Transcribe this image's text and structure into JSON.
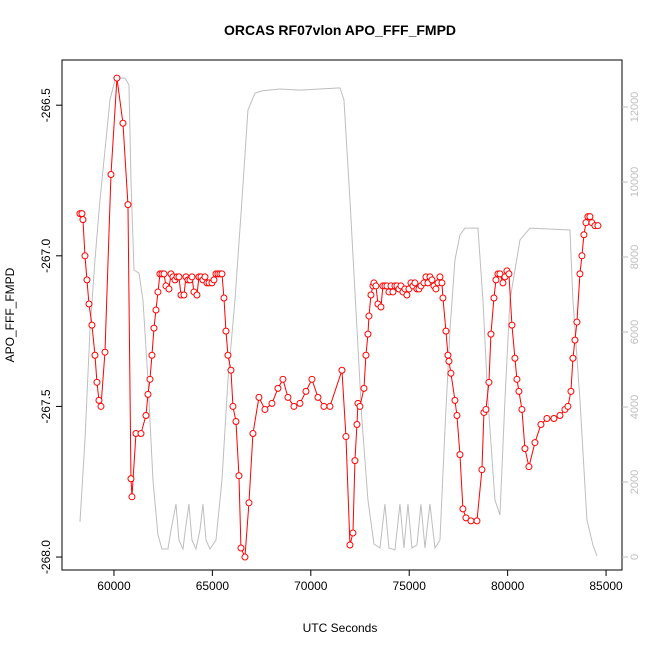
{
  "chart_data": {
    "type": "line",
    "title": "ORCAS RF07vlon APO_FFF_FMPD",
    "xlabel": "UTC Seconds",
    "ylabel": "APO_FFF_FMPD",
    "xlim": [
      57360,
      85810
    ],
    "xticks": [
      60000,
      65000,
      70000,
      75000,
      80000,
      85000
    ],
    "ylim": [
      -268.043,
      -266.35
    ],
    "yticks": [
      -266.5,
      {
        "value": -267.0,
        "label": "-267.0"
      },
      -267.5,
      {
        "value": -268.0,
        "label": "-268.0"
      }
    ],
    "y2lim": [
      -347,
      13253
    ],
    "y2ticks": [
      0,
      2000,
      4000,
      6000,
      8000,
      10000,
      12000
    ],
    "series": [
      {
        "color": "#bebebe",
        "axis": "y2",
        "markers": false,
        "x": [
          58273,
          58527,
          58781,
          59035,
          59289,
          59543,
          59797,
          60051,
          60305,
          60559,
          60762,
          60864,
          61016,
          61270,
          61473,
          61727,
          61981,
          62235,
          62438,
          62743,
          62896,
          63150,
          63302,
          63505,
          63658,
          63810,
          63962,
          64166,
          64369,
          64521,
          64674,
          64877,
          65182,
          65486,
          65791,
          66147,
          66502,
          66807,
          67163,
          67518,
          68433,
          69449,
          70465,
          71481,
          71684,
          71989,
          72294,
          72598,
          72903,
          73208,
          73513,
          73767,
          73970,
          74275,
          74529,
          74732,
          74935,
          75138,
          75392,
          75596,
          75799,
          76053,
          76307,
          76561,
          76815,
          77069,
          77323,
          77577,
          77831,
          78491,
          78745,
          78999,
          79355,
          79609,
          79863,
          80117,
          80625,
          81133,
          83165,
          83317,
          83673,
          84028,
          84333,
          84536
        ],
        "values": [
          933,
          3120,
          6050,
          7920,
          9520,
          10850,
          12190,
          12720,
          12770,
          12770,
          12590,
          10050,
          7650,
          7570,
          6850,
          4720,
          2050,
          590,
          213,
          213,
          720,
          1410,
          450,
          213,
          850,
          1410,
          450,
          213,
          720,
          1410,
          450,
          213,
          450,
          2050,
          4720,
          6850,
          9520,
          11920,
          12370,
          12430,
          12480,
          12450,
          12480,
          12510,
          12190,
          9520,
          6590,
          3650,
          1520,
          347,
          240,
          1410,
          240,
          190,
          1410,
          240,
          1410,
          240,
          320,
          1410,
          240,
          1410,
          240,
          450,
          3390,
          6050,
          7920,
          8590,
          8770,
          8770,
          6850,
          4190,
          1520,
          1120,
          4190,
          6850,
          8450,
          8770,
          8720,
          6850,
          4190,
          990,
          320,
          27
        ]
      },
      {
        "color": "#ff0000",
        "markers": true,
        "x": [
          58273,
          58374,
          58425,
          58527,
          58628,
          58730,
          58882,
          59035,
          59136,
          59238,
          59340,
          59543,
          59848,
          60152,
          60457,
          60711,
          60864,
          60914,
          61118,
          61372,
          61626,
          61727,
          61829,
          61930,
          62032,
          62134,
          62235,
          62337,
          62438,
          62540,
          62642,
          62794,
          62896,
          62997,
          63099,
          63200,
          63302,
          63404,
          63556,
          63658,
          63759,
          63861,
          63962,
          64064,
          64216,
          64318,
          64420,
          64521,
          64623,
          64724,
          64826,
          64978,
          65080,
          65182,
          65283,
          65385,
          65486,
          65588,
          65690,
          65791,
          65944,
          66045,
          66198,
          66350,
          66452,
          66655,
          66858,
          67061,
          67366,
          67671,
          68026,
          68331,
          68585,
          68839,
          69144,
          69449,
          69754,
          70058,
          70363,
          70668,
          70973,
          71582,
          71786,
          71989,
          72141,
          72243,
          72344,
          72395,
          72497,
          72700,
          72802,
          72903,
          72954,
          73056,
          73157,
          73208,
          73310,
          73411,
          73564,
          73665,
          73767,
          73868,
          73970,
          74072,
          74173,
          74275,
          74376,
          74478,
          74580,
          74681,
          74783,
          74884,
          74986,
          75088,
          75189,
          75291,
          75392,
          75494,
          75596,
          75748,
          75850,
          75951,
          76053,
          76154,
          76256,
          76358,
          76459,
          76561,
          76662,
          76713,
          76866,
          76967,
          77018,
          77120,
          77323,
          77424,
          77577,
          77729,
          77882,
          78136,
          78440,
          78694,
          78796,
          78898,
          79050,
          79152,
          79304,
          79406,
          79507,
          79609,
          79761,
          79863,
          79964,
          80066,
          80218,
          80371,
          80472,
          80574,
          80726,
          80879,
          81082,
          81387,
          81692,
          81996,
          82352,
          82657,
          82911,
          83063,
          83216,
          83317,
          83419,
          83520,
          83673,
          83774,
          83876,
          83978,
          84079,
          84181,
          84282,
          84435,
          84587
        ],
        "values": [
          -266.86,
          -266.86,
          -266.88,
          -267.0,
          -267.08,
          -267.16,
          -267.23,
          -267.33,
          -267.42,
          -267.48,
          -267.5,
          -267.32,
          -266.73,
          -266.41,
          -266.56,
          -266.83,
          -267.74,
          -267.8,
          -267.59,
          -267.59,
          -267.53,
          -267.46,
          -267.41,
          -267.33,
          -267.24,
          -267.18,
          -267.12,
          -267.06,
          -267.06,
          -267.06,
          -267.1,
          -267.11,
          -267.06,
          -267.07,
          -267.08,
          -267.07,
          -267.07,
          -267.13,
          -267.13,
          -267.07,
          -267.08,
          -267.08,
          -267.07,
          -267.12,
          -267.13,
          -267.07,
          -267.07,
          -267.08,
          -267.07,
          -267.09,
          -267.09,
          -267.09,
          -267.08,
          -267.06,
          -267.06,
          -267.06,
          -267.06,
          -267.14,
          -267.25,
          -267.33,
          -267.38,
          -267.5,
          -267.55,
          -267.73,
          -267.97,
          -268.0,
          -267.82,
          -267.59,
          -267.47,
          -267.51,
          -267.49,
          -267.44,
          -267.41,
          -267.47,
          -267.5,
          -267.49,
          -267.45,
          -267.41,
          -267.47,
          -267.5,
          -267.5,
          -267.38,
          -267.6,
          -267.96,
          -267.92,
          -267.68,
          -267.56,
          -267.49,
          -267.5,
          -267.44,
          -267.33,
          -267.26,
          -267.2,
          -267.13,
          -267.1,
          -267.09,
          -267.1,
          -267.16,
          -267.17,
          -267.1,
          -267.1,
          -267.1,
          -267.12,
          -267.1,
          -267.12,
          -267.1,
          -267.1,
          -267.11,
          -267.1,
          -267.12,
          -267.11,
          -267.13,
          -267.11,
          -267.09,
          -267.1,
          -267.09,
          -267.11,
          -267.11,
          -267.1,
          -267.09,
          -267.07,
          -267.09,
          -267.07,
          -267.08,
          -267.1,
          -267.11,
          -267.09,
          -267.07,
          -267.09,
          -267.14,
          -267.25,
          -267.33,
          -267.35,
          -267.39,
          -267.48,
          -267.53,
          -267.66,
          -267.84,
          -267.87,
          -267.88,
          -267.88,
          -267.71,
          -267.52,
          -267.51,
          -267.42,
          -267.26,
          -267.14,
          -267.08,
          -267.06,
          -267.06,
          -267.09,
          -267.07,
          -267.05,
          -267.06,
          -267.23,
          -267.34,
          -267.41,
          -267.45,
          -267.51,
          -267.64,
          -267.7,
          -267.62,
          -267.56,
          -267.54,
          -267.54,
          -267.53,
          -267.51,
          -267.5,
          -267.45,
          -267.34,
          -267.28,
          -267.22,
          -267.06,
          -267.0,
          -266.93,
          -266.89,
          -266.87,
          -266.87,
          -266.89,
          -266.9,
          -266.9
        ]
      }
    ]
  }
}
